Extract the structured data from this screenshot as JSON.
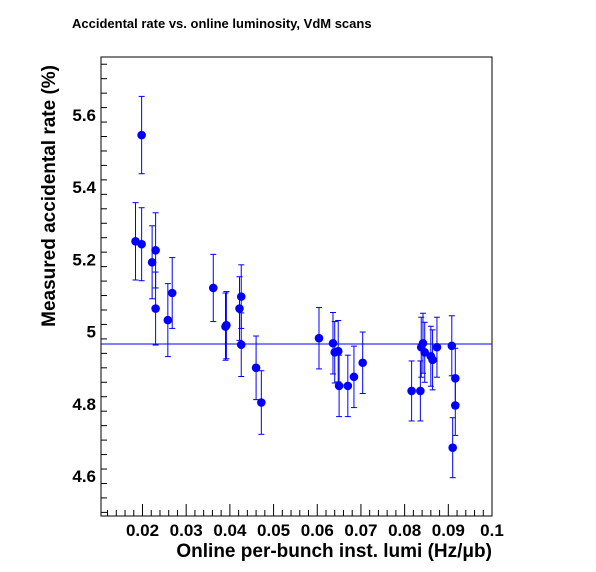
{
  "chart_data": {
    "type": "scatter",
    "title": "Accidental rate vs. online luminosity, VdM scans",
    "xlabel": "Online per-bunch inst. lumi (Hz/μb)",
    "ylabel": "Measured accidental rate (%)",
    "xlim": [
      0.0105,
      0.1
    ],
    "ylim": [
      4.49,
      5.76
    ],
    "xticks": [
      {
        "value": 0.02,
        "label": "0.02"
      },
      {
        "value": 0.03,
        "label": "0.03"
      },
      {
        "value": 0.04,
        "label": "0.04"
      },
      {
        "value": 0.05,
        "label": "0.05"
      },
      {
        "value": 0.06,
        "label": "0.06"
      },
      {
        "value": 0.07,
        "label": "0.07"
      },
      {
        "value": 0.08,
        "label": "0.08"
      },
      {
        "value": 0.09,
        "label": "0.09"
      },
      {
        "value": 0.1,
        "label": "0.1"
      }
    ],
    "yticks": [
      {
        "value": 4.6,
        "label": "4.6"
      },
      {
        "value": 4.8,
        "label": "4.8"
      },
      {
        "value": 5.0,
        "label": "5"
      },
      {
        "value": 5.2,
        "label": "5.2"
      },
      {
        "value": 5.4,
        "label": "5.4"
      },
      {
        "value": 5.6,
        "label": "5.6"
      }
    ],
    "fit_line": {
      "y": 4.966
    },
    "grid": false,
    "legend": "none",
    "marker_color": "#0000ff",
    "line_color": "#0000ff",
    "points": [
      {
        "x": 0.0184,
        "y": 5.25,
        "err": 0.107
      },
      {
        "x": 0.0198,
        "y": 5.544,
        "err": 0.107
      },
      {
        "x": 0.0198,
        "y": 5.242,
        "err": 0.101
      },
      {
        "x": 0.0222,
        "y": 5.192,
        "err": 0.101
      },
      {
        "x": 0.023,
        "y": 5.225,
        "err": 0.104
      },
      {
        "x": 0.023,
        "y": 5.064,
        "err": 0.101
      },
      {
        "x": 0.0258,
        "y": 5.032,
        "err": 0.101
      },
      {
        "x": 0.0268,
        "y": 5.107,
        "err": 0.098
      },
      {
        "x": 0.0362,
        "y": 5.121,
        "err": 0.093
      },
      {
        "x": 0.039,
        "y": 5.014,
        "err": 0.093
      },
      {
        "x": 0.0392,
        "y": 5.018,
        "err": 0.093
      },
      {
        "x": 0.0422,
        "y": 5.064,
        "err": 0.088
      },
      {
        "x": 0.0426,
        "y": 5.097,
        "err": 0.088
      },
      {
        "x": 0.0426,
        "y": 4.964,
        "err": 0.088
      },
      {
        "x": 0.046,
        "y": 4.9,
        "err": 0.088
      },
      {
        "x": 0.0472,
        "y": 4.804,
        "err": 0.088
      },
      {
        "x": 0.0604,
        "y": 4.982,
        "err": 0.085
      },
      {
        "x": 0.0636,
        "y": 4.968,
        "err": 0.085
      },
      {
        "x": 0.064,
        "y": 4.943,
        "err": 0.085
      },
      {
        "x": 0.0648,
        "y": 4.946,
        "err": 0.085
      },
      {
        "x": 0.065,
        "y": 4.85,
        "err": 0.085
      },
      {
        "x": 0.067,
        "y": 4.85,
        "err": 0.085
      },
      {
        "x": 0.0684,
        "y": 4.875,
        "err": 0.085
      },
      {
        "x": 0.0704,
        "y": 4.914,
        "err": 0.085
      },
      {
        "x": 0.0816,
        "y": 4.836,
        "err": 0.083
      },
      {
        "x": 0.0836,
        "y": 4.836,
        "err": 0.083
      },
      {
        "x": 0.0838,
        "y": 4.957,
        "err": 0.083
      },
      {
        "x": 0.0842,
        "y": 4.968,
        "err": 0.083
      },
      {
        "x": 0.0846,
        "y": 4.943,
        "err": 0.083
      },
      {
        "x": 0.086,
        "y": 4.932,
        "err": 0.083
      },
      {
        "x": 0.0864,
        "y": 4.922,
        "err": 0.083
      },
      {
        "x": 0.0874,
        "y": 4.957,
        "err": 0.083
      },
      {
        "x": 0.0908,
        "y": 4.961,
        "err": 0.083
      },
      {
        "x": 0.091,
        "y": 4.679,
        "err": 0.083
      },
      {
        "x": 0.0916,
        "y": 4.871,
        "err": 0.083
      },
      {
        "x": 0.0916,
        "y": 4.796,
        "err": 0.083
      }
    ]
  }
}
